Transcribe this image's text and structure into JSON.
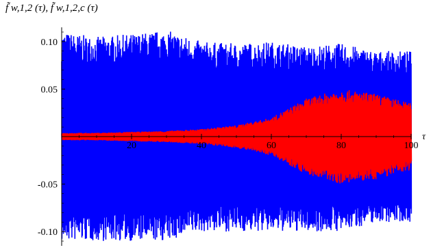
{
  "chart_data": {
    "type": "line",
    "title": "",
    "xlabel": "τ",
    "ylabel": "f̃ w,1,2 (τ), f̃ w,1,2,c (τ)",
    "xlim": [
      0,
      100
    ],
    "ylim": [
      -0.115,
      0.115
    ],
    "x_ticks": [
      "20",
      "40",
      "60",
      "80",
      "100"
    ],
    "y_ticks": [
      "0.10",
      "0.05",
      "-0.05",
      "-0.10"
    ],
    "grid": false,
    "legend": "none",
    "series": [
      {
        "color": "#0000ff",
        "x": [
          0,
          10,
          20,
          30,
          40,
          50,
          60,
          70,
          80,
          90,
          100
        ],
        "y_max": [
          0.11,
          0.105,
          0.108,
          0.112,
          0.1,
          0.098,
          0.1,
          0.095,
          0.098,
          0.09,
          0.09
        ],
        "y_min": [
          -0.11,
          -0.11,
          -0.11,
          -0.11,
          -0.1,
          -0.1,
          -0.1,
          -0.1,
          -0.1,
          -0.09,
          -0.09
        ]
      },
      {
        "color": "#ff0000",
        "x": [
          0,
          10,
          20,
          30,
          40,
          50,
          60,
          70,
          80,
          90,
          100
        ],
        "y_max": [
          0.004,
          0.004,
          0.005,
          0.006,
          0.008,
          0.012,
          0.02,
          0.04,
          0.05,
          0.045,
          0.035
        ],
        "y_min": [
          -0.004,
          -0.004,
          -0.005,
          -0.006,
          -0.008,
          -0.012,
          -0.02,
          -0.04,
          -0.05,
          -0.045,
          -0.035
        ]
      }
    ]
  }
}
